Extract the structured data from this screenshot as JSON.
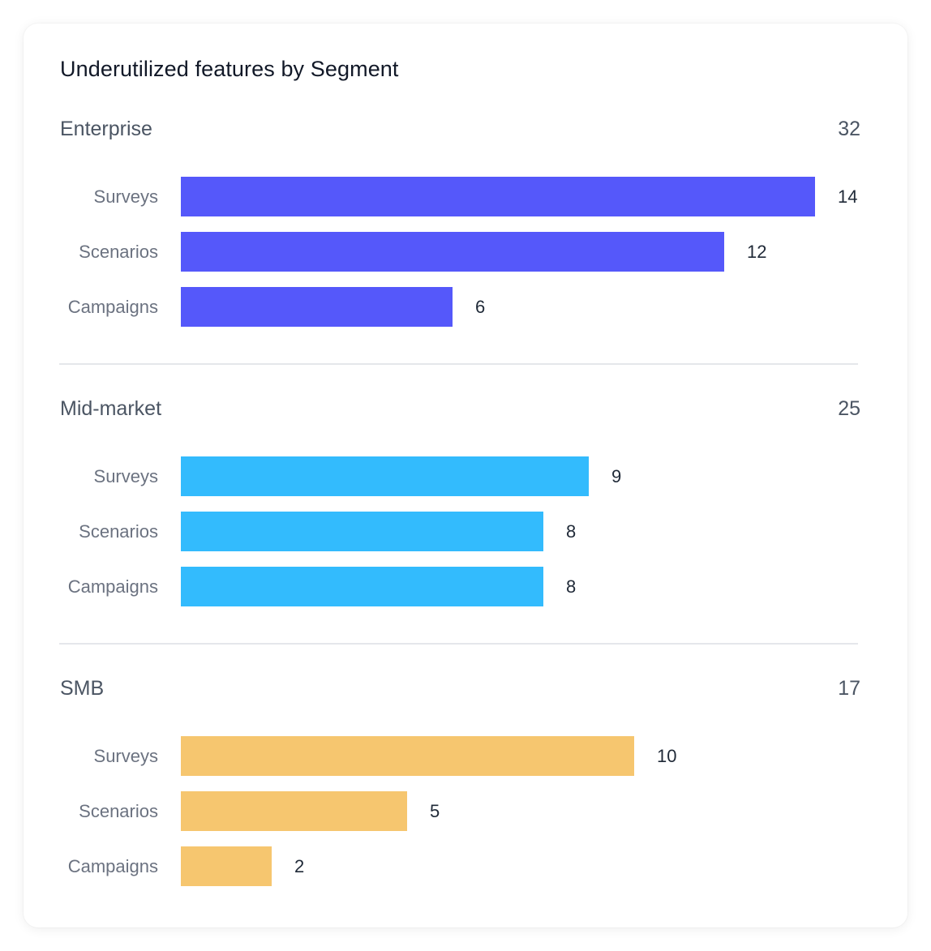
{
  "chart_data": {
    "type": "bar",
    "orientation": "horizontal",
    "title": "Underutilized features by Segment",
    "xlim": [
      0,
      14
    ],
    "groups": [
      {
        "name": "Enterprise",
        "total": "32",
        "color": "#5558fa",
        "categories": [
          "Surveys",
          "Scenarios",
          "Campaigns"
        ],
        "values": [
          14,
          12,
          6
        ]
      },
      {
        "name": "Mid-market",
        "total": "25",
        "color": "#33bbfd",
        "categories": [
          "Surveys",
          "Scenarios",
          "Campaigns"
        ],
        "values": [
          9,
          8,
          8
        ]
      },
      {
        "name": "SMB",
        "total": "17",
        "color": "#f6c66f",
        "categories": [
          "Surveys",
          "Scenarios",
          "Campaigns"
        ],
        "values": [
          10,
          5,
          2
        ]
      }
    ]
  }
}
